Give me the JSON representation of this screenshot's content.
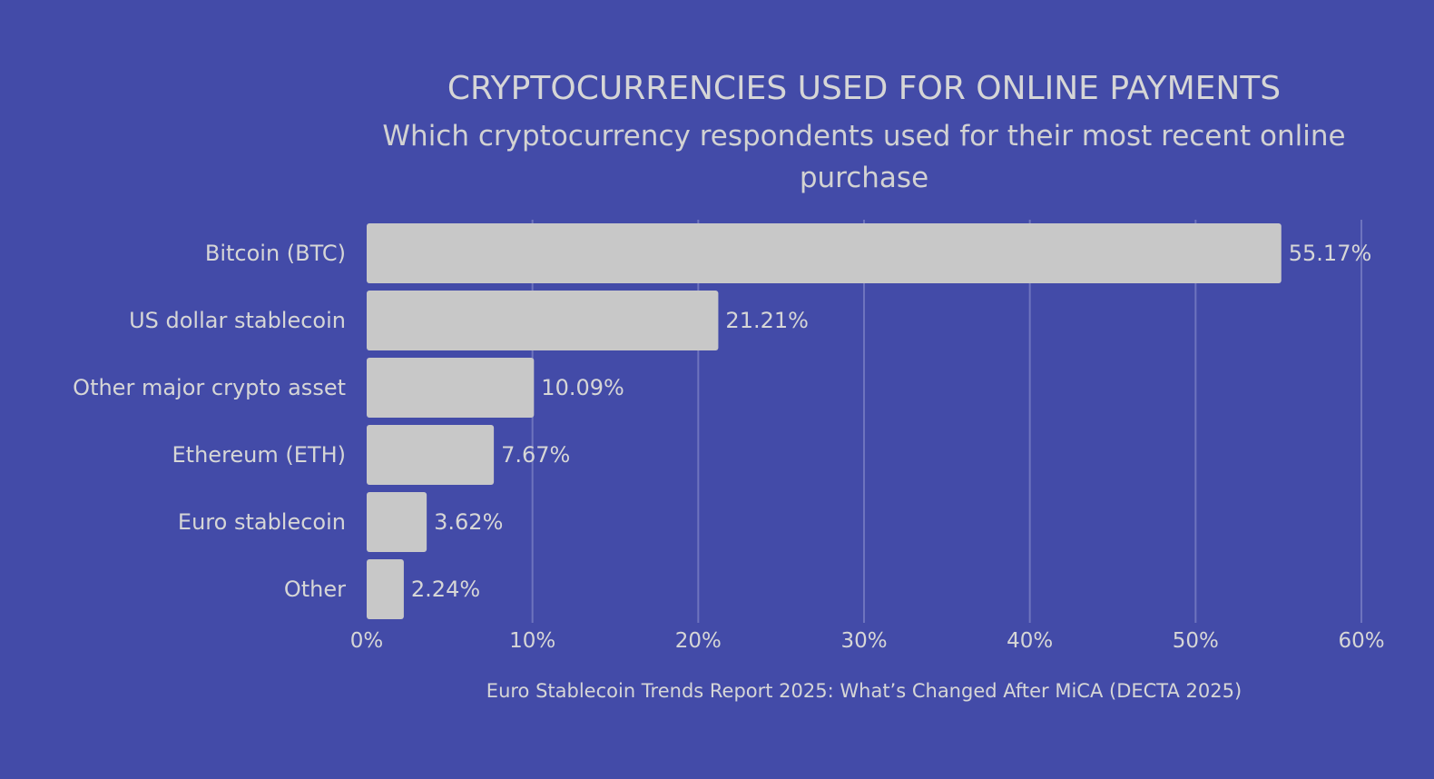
{
  "colors": {
    "background": "#434BA8",
    "bar": "#C8C8C8",
    "text": "#D6D6D6",
    "grid": "#6E74BE"
  },
  "chart_data": {
    "type": "bar",
    "orientation": "horizontal",
    "title": "CRYPTOCURRENCIES USED FOR ONLINE PAYMENTS",
    "subtitle_lines": [
      "Which cryptocurrency respondents used for their most recent online",
      "purchase"
    ],
    "categories": [
      "Bitcoin (BTC)",
      "US dollar stablecoin",
      "Other major crypto asset",
      "Ethereum (ETH)",
      "Euro stablecoin",
      "Other"
    ],
    "values": [
      55.17,
      21.21,
      10.09,
      7.67,
      3.62,
      2.24
    ],
    "value_labels": [
      "55.17%",
      "21.21%",
      "10.09%",
      "7.67%",
      "3.62%",
      "2.24%"
    ],
    "xlim": [
      0,
      60
    ],
    "x_ticks": [
      0,
      10,
      20,
      30,
      40,
      50,
      60
    ],
    "x_tick_labels": [
      "0%",
      "10%",
      "20%",
      "30%",
      "40%",
      "50%",
      "60%"
    ],
    "grid": "vertical",
    "legend": "none",
    "source": "Euro Stablecoin Trends Report 2025: What’s Changed After MiCA (DECTA 2025)"
  }
}
